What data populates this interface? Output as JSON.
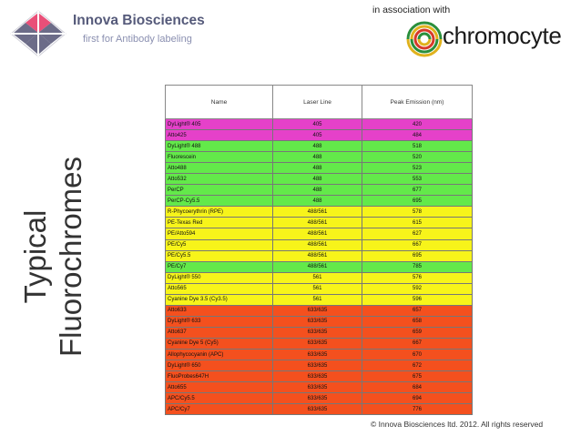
{
  "brand": {
    "name": "Innova Biosciences",
    "tagline": "first for Antibody labeling",
    "association_text": "in association with",
    "partner_name": "chromocyte"
  },
  "title": {
    "line1": "Typical",
    "line2": "Fluorochromes"
  },
  "table": {
    "headers": [
      "Name",
      "Laser Line",
      "Peak Emission (nm)"
    ],
    "rows": [
      {
        "name": "DyLight® 405",
        "laser": "405",
        "emission": "420",
        "color": "magenta"
      },
      {
        "name": "Atto425",
        "laser": "405",
        "emission": "484",
        "color": "magenta"
      },
      {
        "name": "DyLight® 488",
        "laser": "488",
        "emission": "518",
        "color": "green"
      },
      {
        "name": "Fluorescein",
        "laser": "488",
        "emission": "520",
        "color": "green"
      },
      {
        "name": "Atto488",
        "laser": "488",
        "emission": "523",
        "color": "green"
      },
      {
        "name": "Atto532",
        "laser": "488",
        "emission": "553",
        "color": "green"
      },
      {
        "name": "PerCP",
        "laser": "488",
        "emission": "677",
        "color": "green"
      },
      {
        "name": "PerCP-Cy5.5",
        "laser": "488",
        "emission": "695",
        "color": "green"
      },
      {
        "name": "R-Phycoerythrin (RPE)",
        "laser": "488/561",
        "emission": "578",
        "color": "yellow"
      },
      {
        "name": "PE-Texas Red",
        "laser": "488/561",
        "emission": "615",
        "color": "yellow"
      },
      {
        "name": "PE/Atto594",
        "laser": "488/561",
        "emission": "627",
        "color": "yellow"
      },
      {
        "name": "PE/Cy5",
        "laser": "488/561",
        "emission": "667",
        "color": "yellow"
      },
      {
        "name": "PE/Cy5.5",
        "laser": "488/561",
        "emission": "695",
        "color": "yellow"
      },
      {
        "name": "PE/Cy7",
        "laser": "488/561",
        "emission": "785",
        "color": "green"
      },
      {
        "name": "DyLight® 550",
        "laser": "561",
        "emission": "576",
        "color": "yellow"
      },
      {
        "name": "Atto565",
        "laser": "561",
        "emission": "592",
        "color": "yellow"
      },
      {
        "name": "Cyanine Dye 3.5 (Cy3.5)",
        "laser": "561",
        "emission": "596",
        "color": "yellow"
      },
      {
        "name": "Atto633",
        "laser": "633/635",
        "emission": "657",
        "color": "orange"
      },
      {
        "name": "DyLight® 633",
        "laser": "633/635",
        "emission": "658",
        "color": "orange"
      },
      {
        "name": "Atto637",
        "laser": "633/635",
        "emission": "659",
        "color": "orange"
      },
      {
        "name": "Cyanine Dye 5 (Cy5)",
        "laser": "633/635",
        "emission": "667",
        "color": "orange"
      },
      {
        "name": "Allophycocyanin (APC)",
        "laser": "633/635",
        "emission": "670",
        "color": "orange"
      },
      {
        "name": "DyLight® 650",
        "laser": "633/635",
        "emission": "672",
        "color": "orange"
      },
      {
        "name": "FluoProbes647H",
        "laser": "633/635",
        "emission": "675",
        "color": "orange"
      },
      {
        "name": "Atto655",
        "laser": "633/635",
        "emission": "684",
        "color": "orange"
      },
      {
        "name": "APC/Cy5.5",
        "laser": "633/635",
        "emission": "694",
        "color": "orange"
      },
      {
        "name": "APC/Cy7",
        "laser": "633/635",
        "emission": "776",
        "color": "orange"
      }
    ]
  },
  "row_colors": {
    "magenta": "#e541c9",
    "green": "#63e94a",
    "yellow": "#f7f41a",
    "orange": "#f4501e"
  },
  "footer": {
    "copyright": "© Innova Biosciences ltd. 2012. All rights reserved"
  }
}
